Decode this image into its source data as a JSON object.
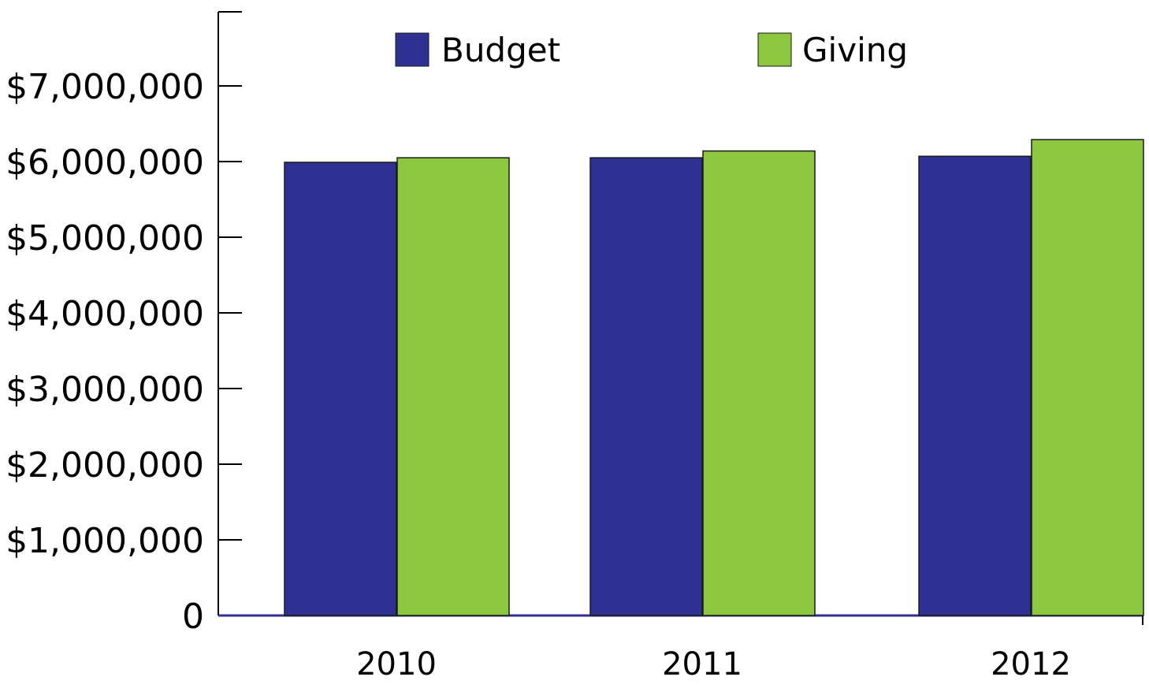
{
  "chart_data": {
    "type": "bar",
    "title": "",
    "xlabel": "",
    "ylabel": "",
    "categories": [
      "2010",
      "2011",
      "2012"
    ],
    "series": [
      {
        "name": "Budget",
        "values": [
          5990000,
          6050000,
          6070000
        ],
        "color": "#2e3192"
      },
      {
        "name": "Giving",
        "values": [
          6050000,
          6140000,
          6290000
        ],
        "color": "#8dc63f"
      }
    ],
    "ylim": [
      0,
      8000000
    ],
    "yticks": [
      0,
      1000000,
      2000000,
      3000000,
      4000000,
      5000000,
      6000000,
      7000000
    ],
    "ytick_labels": [
      "0",
      "$1,000,000",
      "$2,000,000",
      "$3,000,000",
      "$4,000,000",
      "$5,000,000",
      "$6,000,000",
      "$7,000,000"
    ],
    "grid": false,
    "legend": {
      "placement": "top",
      "entries": [
        "Budget",
        "Giving"
      ]
    },
    "colors": {
      "axis": "#000000",
      "baseline": "#2e3192",
      "bar_outline": "#1a1a1a"
    }
  }
}
